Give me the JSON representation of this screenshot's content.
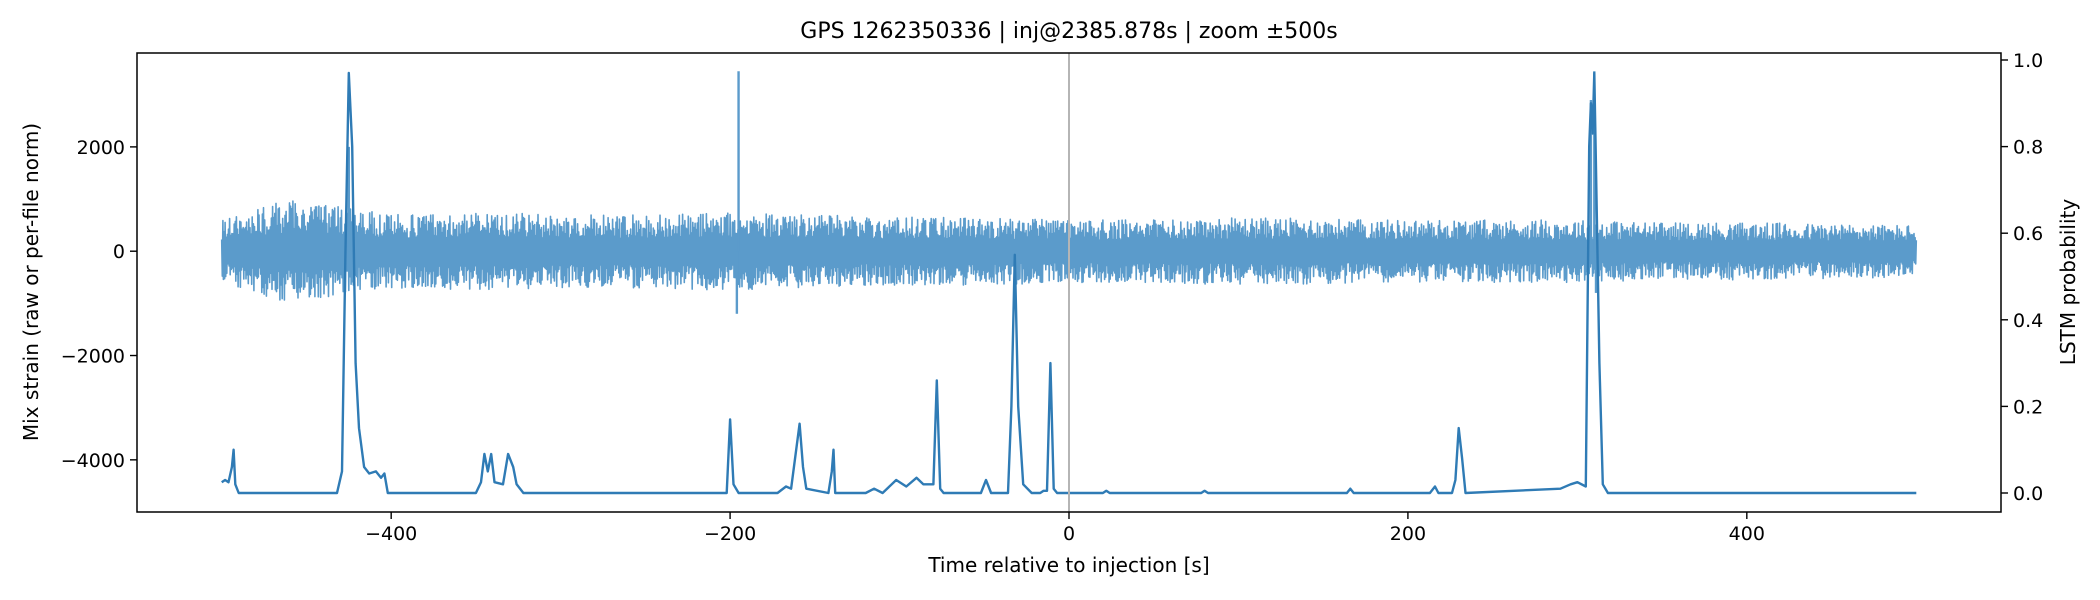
{
  "chart_data": {
    "type": "line",
    "title": "GPS 1262350336 | inj@2385.878s | zoom ±500s",
    "xlabel": "Time relative to injection [s]",
    "ylabel": "Mix strain (raw or per-file norm)",
    "y2label": "LSTM probability",
    "xlim": [
      -500,
      500
    ],
    "ylim": [
      -5000,
      3800
    ],
    "y2lim": [
      0.0,
      1.0
    ],
    "xticks": [
      -400,
      -200,
      0,
      200,
      400
    ],
    "xtick_labels": [
      "−400",
      "−200",
      "0",
      "200",
      "400"
    ],
    "yticks": [
      2000,
      0,
      -2000,
      -4000
    ],
    "ytick_labels": [
      "2000",
      "0",
      "−2000",
      "−4000"
    ],
    "y2ticks": [
      1.0,
      0.8,
      0.6,
      0.4,
      0.2,
      0.0
    ],
    "y2tick_labels": [
      "1.0",
      "0.8",
      "0.6",
      "0.4",
      "0.2",
      "0.0"
    ],
    "grid": false,
    "vline_x": 0,
    "colors": {
      "strain": "#5b9bcb",
      "prob": "#2f7bb5",
      "vline": "#b5b5b5"
    },
    "strain_series": {
      "axis": "left",
      "baseline_amplitude": 550,
      "noise_band": [
        [
          -500,
          600
        ],
        [
          -480,
          800
        ],
        [
          -460,
          1000
        ],
        [
          -440,
          900
        ],
        [
          -420,
          800
        ],
        [
          -400,
          700
        ],
        [
          -350,
          750
        ],
        [
          -300,
          700
        ],
        [
          -250,
          700
        ],
        [
          -200,
          750
        ],
        [
          -150,
          700
        ],
        [
          -100,
          650
        ],
        [
          -50,
          650
        ],
        [
          0,
          600
        ],
        [
          50,
          600
        ],
        [
          100,
          650
        ],
        [
          150,
          620
        ],
        [
          200,
          600
        ],
        [
          250,
          600
        ],
        [
          300,
          600
        ],
        [
          350,
          550
        ],
        [
          400,
          550
        ],
        [
          450,
          520
        ],
        [
          500,
          500
        ]
      ],
      "spikes": [
        {
          "x": -425,
          "y": 2000
        },
        {
          "x": -423,
          "y": -600
        },
        {
          "x": -195,
          "y": 3450
        },
        {
          "x": -196,
          "y": -1200
        },
        {
          "x": 310,
          "y": 3450
        },
        {
          "x": 311,
          "y": -800
        },
        {
          "x": 308,
          "y": 2900
        }
      ]
    },
    "prob_series": {
      "axis": "right",
      "points": [
        [
          -500,
          0.025
        ],
        [
          -498,
          0.03
        ],
        [
          -496,
          0.025
        ],
        [
          -494,
          0.06
        ],
        [
          -493,
          0.1
        ],
        [
          -492,
          0.02
        ],
        [
          -490,
          0.0
        ],
        [
          -432,
          0.0
        ],
        [
          -429,
          0.05
        ],
        [
          -427,
          0.55
        ],
        [
          -425,
          0.97
        ],
        [
          -423,
          0.8
        ],
        [
          -421,
          0.3
        ],
        [
          -419,
          0.15
        ],
        [
          -416,
          0.06
        ],
        [
          -413,
          0.045
        ],
        [
          -409,
          0.05
        ],
        [
          -406,
          0.035
        ],
        [
          -404,
          0.045
        ],
        [
          -402,
          0.0
        ],
        [
          -350,
          0.0
        ],
        [
          -347,
          0.025
        ],
        [
          -345,
          0.09
        ],
        [
          -343,
          0.05
        ],
        [
          -341,
          0.09
        ],
        [
          -339,
          0.025
        ],
        [
          -334,
          0.02
        ],
        [
          -331,
          0.09
        ],
        [
          -328,
          0.06
        ],
        [
          -326,
          0.02
        ],
        [
          -322,
          0.0
        ],
        [
          -202,
          0.0
        ],
        [
          -200,
          0.17
        ],
        [
          -198,
          0.02
        ],
        [
          -195,
          0.0
        ],
        [
          -172,
          0.0
        ],
        [
          -167,
          0.015
        ],
        [
          -164,
          0.01
        ],
        [
          -161,
          0.1
        ],
        [
          -159,
          0.16
        ],
        [
          -157,
          0.06
        ],
        [
          -155,
          0.01
        ],
        [
          -142,
          0.0
        ],
        [
          -140,
          0.05
        ],
        [
          -139,
          0.1
        ],
        [
          -138,
          0.0
        ],
        [
          -120,
          0.0
        ],
        [
          -115,
          0.01
        ],
        [
          -110,
          0.0
        ],
        [
          -102,
          0.03
        ],
        [
          -96,
          0.015
        ],
        [
          -90,
          0.035
        ],
        [
          -86,
          0.02
        ],
        [
          -80,
          0.02
        ],
        [
          -78,
          0.26
        ],
        [
          -76,
          0.01
        ],
        [
          -74,
          0.0
        ],
        [
          -52,
          0.0
        ],
        [
          -49,
          0.03
        ],
        [
          -46,
          0.0
        ],
        [
          -36,
          0.0
        ],
        [
          -34,
          0.2
        ],
        [
          -32,
          0.55
        ],
        [
          -30,
          0.2
        ],
        [
          -27,
          0.02
        ],
        [
          -22,
          0.0
        ],
        [
          -17,
          0.0
        ],
        [
          -15,
          0.005
        ],
        [
          -13,
          0.005
        ],
        [
          -11,
          0.3
        ],
        [
          -9,
          0.01
        ],
        [
          -7,
          0.0
        ],
        [
          20,
          0.0
        ],
        [
          22,
          0.005
        ],
        [
          24,
          0.0
        ],
        [
          78,
          0.0
        ],
        [
          80,
          0.005
        ],
        [
          82,
          0.0
        ],
        [
          164,
          0.0
        ],
        [
          166,
          0.01
        ],
        [
          168,
          0.0
        ],
        [
          213,
          0.0
        ],
        [
          216,
          0.015
        ],
        [
          218,
          0.0
        ],
        [
          226,
          0.0
        ],
        [
          228,
          0.03
        ],
        [
          230,
          0.15
        ],
        [
          232,
          0.08
        ],
        [
          234,
          0.0
        ],
        [
          290,
          0.01
        ],
        [
          296,
          0.02
        ],
        [
          300,
          0.025
        ],
        [
          305,
          0.015
        ],
        [
          307,
          0.8
        ],
        [
          308,
          0.9
        ],
        [
          309,
          0.83
        ],
        [
          310,
          0.97
        ],
        [
          311,
          0.75
        ],
        [
          313,
          0.3
        ],
        [
          315,
          0.02
        ],
        [
          318,
          0.0
        ],
        [
          500,
          0.0
        ]
      ]
    }
  }
}
